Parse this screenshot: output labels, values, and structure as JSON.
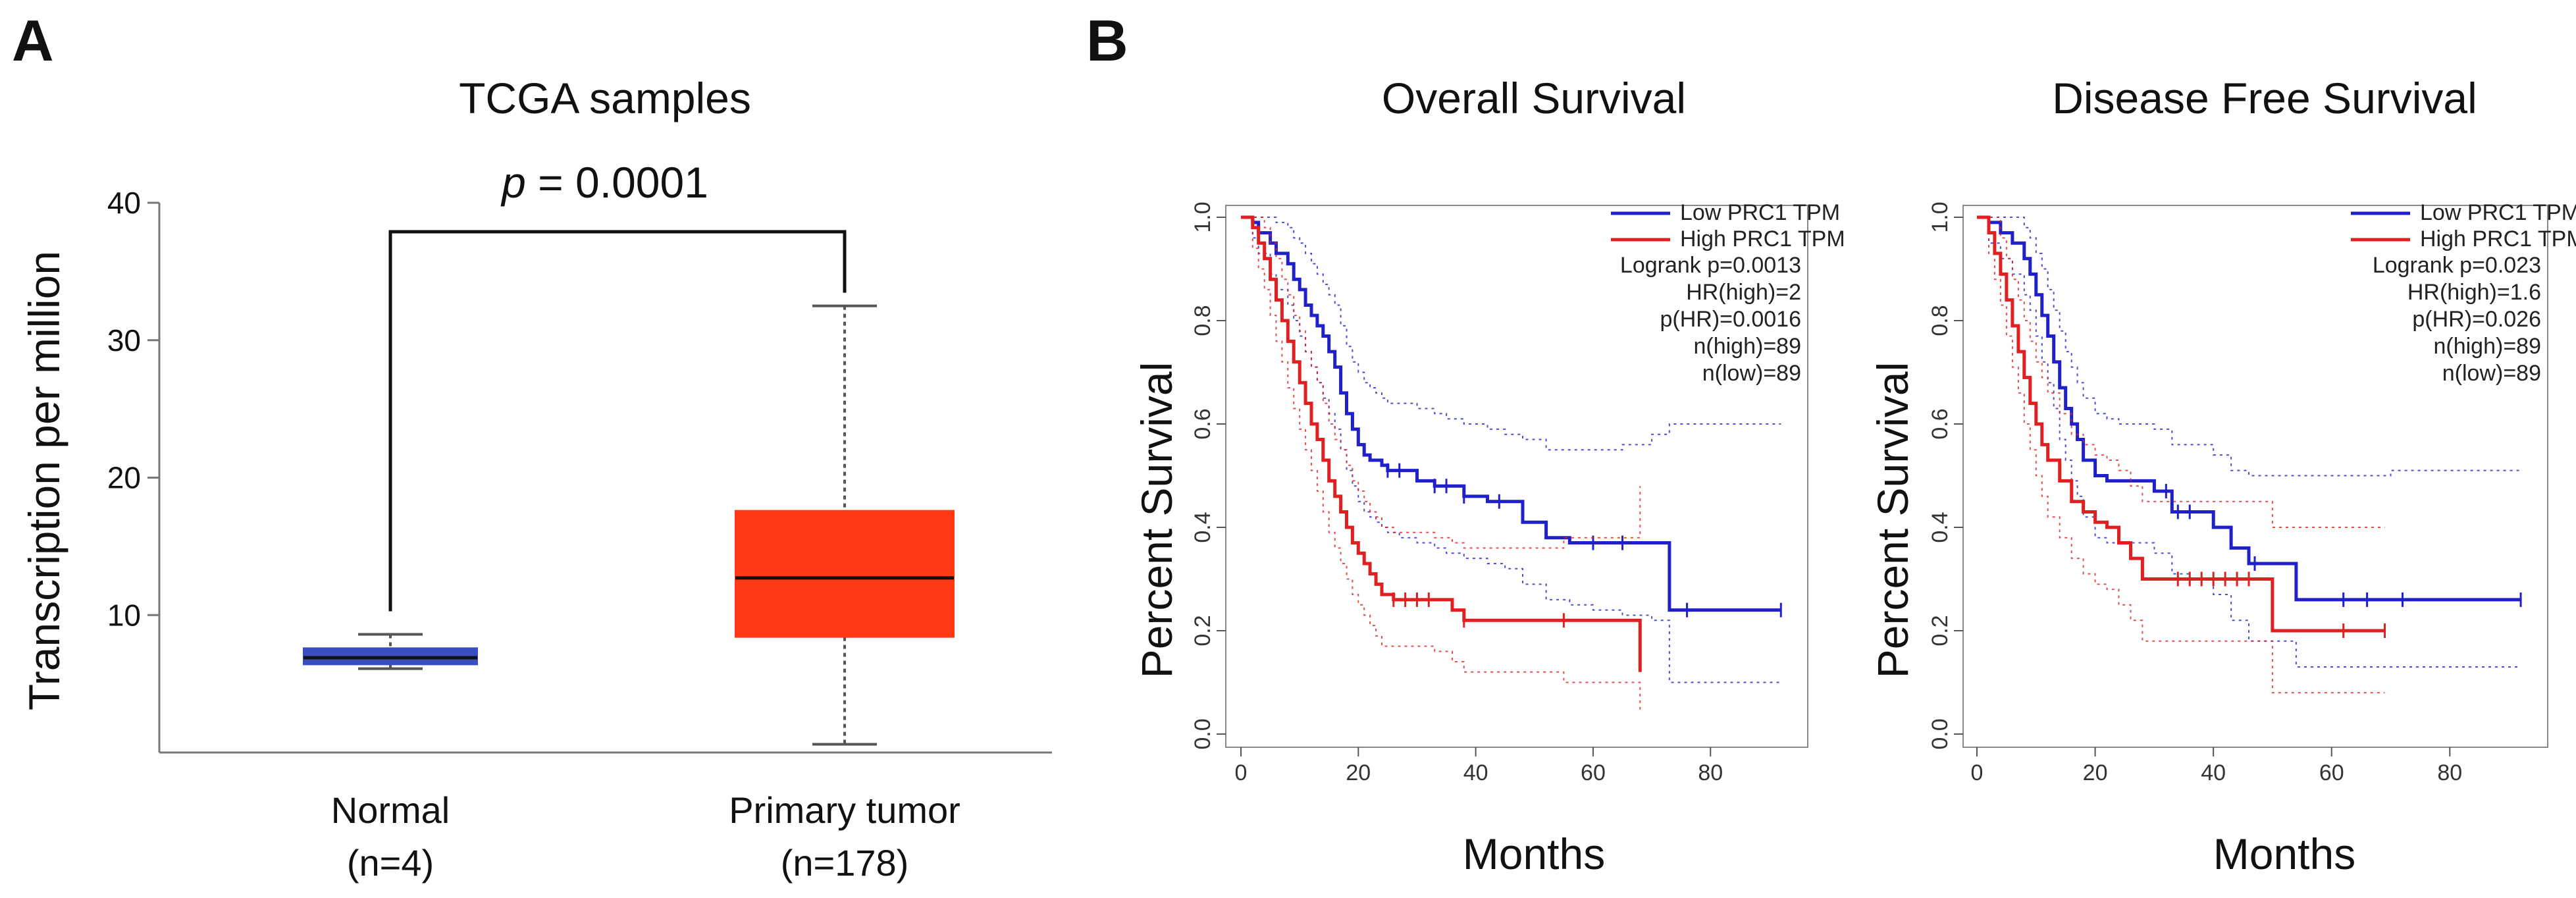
{
  "panel_a": {
    "letter": "A",
    "pvalue_italic": "p",
    "pvalue_rest": " = 0.0001"
  },
  "panel_b": {
    "letter": "B"
  },
  "colors": {
    "normal_box": "#3a4fbf",
    "tumor_box": "#ff3a14",
    "low": "#2020c8",
    "high": "#e02020"
  },
  "chart_data": [
    {
      "id": "box",
      "type": "box",
      "title": "TCGA samples",
      "ylabel": "Transcription per million",
      "ylim": [
        0,
        40
      ],
      "yticks": [
        10,
        20,
        30,
        40
      ],
      "categories": [
        {
          "name": "Normal",
          "n": "(n=4)",
          "min": 6.1,
          "q1": 6.4,
          "median": 6.9,
          "q3": 7.6,
          "max": 8.6,
          "color": "#3a4fbf"
        },
        {
          "name": "Primary tumor",
          "n": "(n=178)",
          "min": 0.6,
          "q1": 8.4,
          "median": 12.7,
          "q3": 17.6,
          "max": 32.5,
          "color": "#ff3a14"
        }
      ]
    },
    {
      "id": "os",
      "type": "line",
      "title": "Overall Survival",
      "xlabel": "Months",
      "ylabel": "Percent Survival",
      "xlim": [
        0,
        95
      ],
      "ylim": [
        0,
        1
      ],
      "xticks": [
        0,
        20,
        40,
        60,
        80
      ],
      "yticks": [
        "0.0",
        "0.2",
        "0.4",
        "0.6",
        "0.8",
        "1.0"
      ],
      "legend": {
        "series_names": [
          "Low PRC1 TPM",
          "High PRC1 TPM"
        ],
        "lines": [
          "Logrank p=0.0013",
          "HR(high)=2",
          "p(HR)=0.0016",
          "n(high)=89",
          "n(low)=89"
        ]
      },
      "series": [
        {
          "name": "Low PRC1 TPM",
          "color": "#2020c8",
          "x": [
            0,
            2,
            3,
            5,
            6,
            8,
            9,
            10,
            11,
            12,
            13,
            14,
            15,
            16,
            17,
            18,
            19,
            20,
            21,
            22,
            23,
            24,
            25,
            27,
            30,
            33,
            35,
            38,
            42,
            45,
            48,
            52,
            56,
            60,
            65,
            70,
            73,
            80,
            92
          ],
          "y": [
            1.0,
            0.99,
            0.97,
            0.95,
            0.93,
            0.91,
            0.88,
            0.86,
            0.83,
            0.81,
            0.79,
            0.77,
            0.74,
            0.71,
            0.66,
            0.62,
            0.59,
            0.56,
            0.54,
            0.53,
            0.53,
            0.52,
            0.51,
            0.51,
            0.49,
            0.48,
            0.48,
            0.46,
            0.45,
            0.45,
            0.41,
            0.38,
            0.37,
            0.37,
            0.37,
            0.37,
            0.24,
            0.24,
            0.24
          ],
          "ci_upper": [
            1.0,
            1.0,
            1.0,
            1.0,
            0.99,
            0.98,
            0.96,
            0.95,
            0.93,
            0.91,
            0.89,
            0.87,
            0.85,
            0.83,
            0.79,
            0.75,
            0.72,
            0.7,
            0.68,
            0.67,
            0.66,
            0.65,
            0.64,
            0.64,
            0.63,
            0.62,
            0.61,
            0.6,
            0.59,
            0.58,
            0.57,
            0.55,
            0.55,
            0.55,
            0.56,
            0.58,
            0.6,
            0.6,
            0.6
          ],
          "ci_lower": [
            1.0,
            0.96,
            0.93,
            0.89,
            0.86,
            0.83,
            0.8,
            0.77,
            0.74,
            0.71,
            0.68,
            0.65,
            0.62,
            0.59,
            0.55,
            0.51,
            0.48,
            0.45,
            0.43,
            0.42,
            0.41,
            0.4,
            0.39,
            0.38,
            0.37,
            0.36,
            0.35,
            0.34,
            0.33,
            0.32,
            0.29,
            0.26,
            0.25,
            0.24,
            0.23,
            0.22,
            0.1,
            0.1,
            0.1
          ],
          "censors": [
            25,
            27,
            33,
            35,
            38,
            44,
            60,
            65,
            76,
            92
          ]
        },
        {
          "name": "High PRC1 TPM",
          "color": "#e02020",
          "x": [
            0,
            2,
            3,
            4,
            5,
            6,
            7,
            8,
            9,
            10,
            11,
            12,
            13,
            14,
            15,
            16,
            17,
            18,
            19,
            20,
            21,
            22,
            23,
            24,
            26,
            30,
            33,
            36,
            38,
            45,
            55,
            68
          ],
          "y": [
            1.0,
            0.98,
            0.95,
            0.92,
            0.88,
            0.84,
            0.8,
            0.76,
            0.72,
            0.68,
            0.64,
            0.6,
            0.57,
            0.53,
            0.49,
            0.46,
            0.43,
            0.4,
            0.37,
            0.35,
            0.33,
            0.31,
            0.29,
            0.27,
            0.26,
            0.26,
            0.26,
            0.24,
            0.22,
            0.22,
            0.22,
            0.12
          ],
          "ci_upper": [
            1.0,
            1.0,
            1.0,
            0.98,
            0.95,
            0.92,
            0.88,
            0.85,
            0.81,
            0.78,
            0.74,
            0.71,
            0.68,
            0.64,
            0.6,
            0.57,
            0.55,
            0.52,
            0.49,
            0.47,
            0.45,
            0.43,
            0.42,
            0.4,
            0.39,
            0.39,
            0.38,
            0.37,
            0.36,
            0.36,
            0.38,
            0.48
          ],
          "ci_lower": [
            1.0,
            0.94,
            0.9,
            0.86,
            0.81,
            0.76,
            0.72,
            0.67,
            0.63,
            0.59,
            0.55,
            0.51,
            0.47,
            0.43,
            0.39,
            0.36,
            0.33,
            0.3,
            0.27,
            0.25,
            0.23,
            0.21,
            0.19,
            0.17,
            0.17,
            0.17,
            0.16,
            0.14,
            0.12,
            0.12,
            0.1,
            0.04
          ],
          "censors": [
            26,
            28,
            30,
            32,
            38,
            55
          ]
        }
      ]
    },
    {
      "id": "dfs",
      "type": "line",
      "title": "Disease Free Survival",
      "xlabel": "Months",
      "ylabel": "Percent Survival",
      "xlim": [
        0,
        95
      ],
      "ylim": [
        0,
        1
      ],
      "xticks": [
        0,
        20,
        40,
        60,
        80
      ],
      "yticks": [
        "0.0",
        "0.2",
        "0.4",
        "0.6",
        "0.8",
        "1.0"
      ],
      "legend": {
        "series_names": [
          "Low PRC1 TPM",
          "High PRC1 TPM"
        ],
        "lines": [
          "Logrank p=0.023",
          "HR(high)=1.6",
          "p(HR)=0.026",
          "n(high)=89",
          "n(low)=89"
        ]
      },
      "series": [
        {
          "name": "Low PRC1 TPM",
          "color": "#2020c8",
          "x": [
            0,
            2,
            4,
            6,
            8,
            9,
            10,
            11,
            12,
            13,
            14,
            15,
            16,
            17,
            18,
            20,
            22,
            24,
            26,
            30,
            33,
            36,
            40,
            43,
            46,
            50,
            54,
            60,
            70,
            80,
            92
          ],
          "y": [
            1.0,
            0.99,
            0.97,
            0.95,
            0.92,
            0.89,
            0.85,
            0.81,
            0.77,
            0.72,
            0.67,
            0.63,
            0.6,
            0.57,
            0.53,
            0.5,
            0.49,
            0.49,
            0.49,
            0.47,
            0.43,
            0.43,
            0.4,
            0.36,
            0.33,
            0.33,
            0.26,
            0.26,
            0.26,
            0.26,
            0.26
          ],
          "ci_upper": [
            1.0,
            1.0,
            1.0,
            1.0,
            0.98,
            0.96,
            0.93,
            0.9,
            0.86,
            0.82,
            0.78,
            0.74,
            0.71,
            0.68,
            0.65,
            0.62,
            0.61,
            0.6,
            0.6,
            0.59,
            0.56,
            0.56,
            0.54,
            0.51,
            0.5,
            0.5,
            0.5,
            0.5,
            0.51,
            0.51,
            0.51
          ],
          "ci_lower": [
            1.0,
            0.95,
            0.92,
            0.89,
            0.85,
            0.82,
            0.77,
            0.72,
            0.68,
            0.63,
            0.57,
            0.53,
            0.49,
            0.46,
            0.42,
            0.38,
            0.37,
            0.37,
            0.37,
            0.35,
            0.31,
            0.3,
            0.27,
            0.22,
            0.18,
            0.18,
            0.13,
            0.13,
            0.13,
            0.13,
            0.13
          ],
          "censors": [
            32,
            34,
            36,
            47,
            62,
            66,
            72,
            92
          ]
        },
        {
          "name": "High PRC1 TPM",
          "color": "#e02020",
          "x": [
            0,
            2,
            3,
            4,
            5,
            6,
            7,
            8,
            9,
            10,
            11,
            12,
            14,
            16,
            18,
            20,
            22,
            24,
            26,
            28,
            32,
            36,
            40,
            45,
            50,
            55,
            62,
            69
          ],
          "y": [
            1.0,
            0.97,
            0.93,
            0.89,
            0.84,
            0.79,
            0.74,
            0.69,
            0.64,
            0.6,
            0.56,
            0.53,
            0.49,
            0.45,
            0.43,
            0.41,
            0.4,
            0.37,
            0.34,
            0.3,
            0.3,
            0.3,
            0.3,
            0.3,
            0.2,
            0.2,
            0.2,
            0.2
          ],
          "ci_upper": [
            1.0,
            1.0,
            1.0,
            0.96,
            0.92,
            0.88,
            0.84,
            0.8,
            0.76,
            0.72,
            0.69,
            0.66,
            0.62,
            0.58,
            0.56,
            0.54,
            0.53,
            0.51,
            0.48,
            0.45,
            0.45,
            0.45,
            0.45,
            0.45,
            0.4,
            0.4,
            0.4,
            0.4
          ],
          "ci_lower": [
            1.0,
            0.93,
            0.88,
            0.83,
            0.77,
            0.71,
            0.66,
            0.6,
            0.55,
            0.5,
            0.46,
            0.42,
            0.38,
            0.34,
            0.31,
            0.29,
            0.28,
            0.25,
            0.22,
            0.18,
            0.18,
            0.18,
            0.18,
            0.18,
            0.08,
            0.08,
            0.08,
            0.08
          ],
          "censors": [
            34,
            36,
            38,
            40,
            42,
            44,
            46,
            62,
            69
          ]
        }
      ]
    }
  ]
}
